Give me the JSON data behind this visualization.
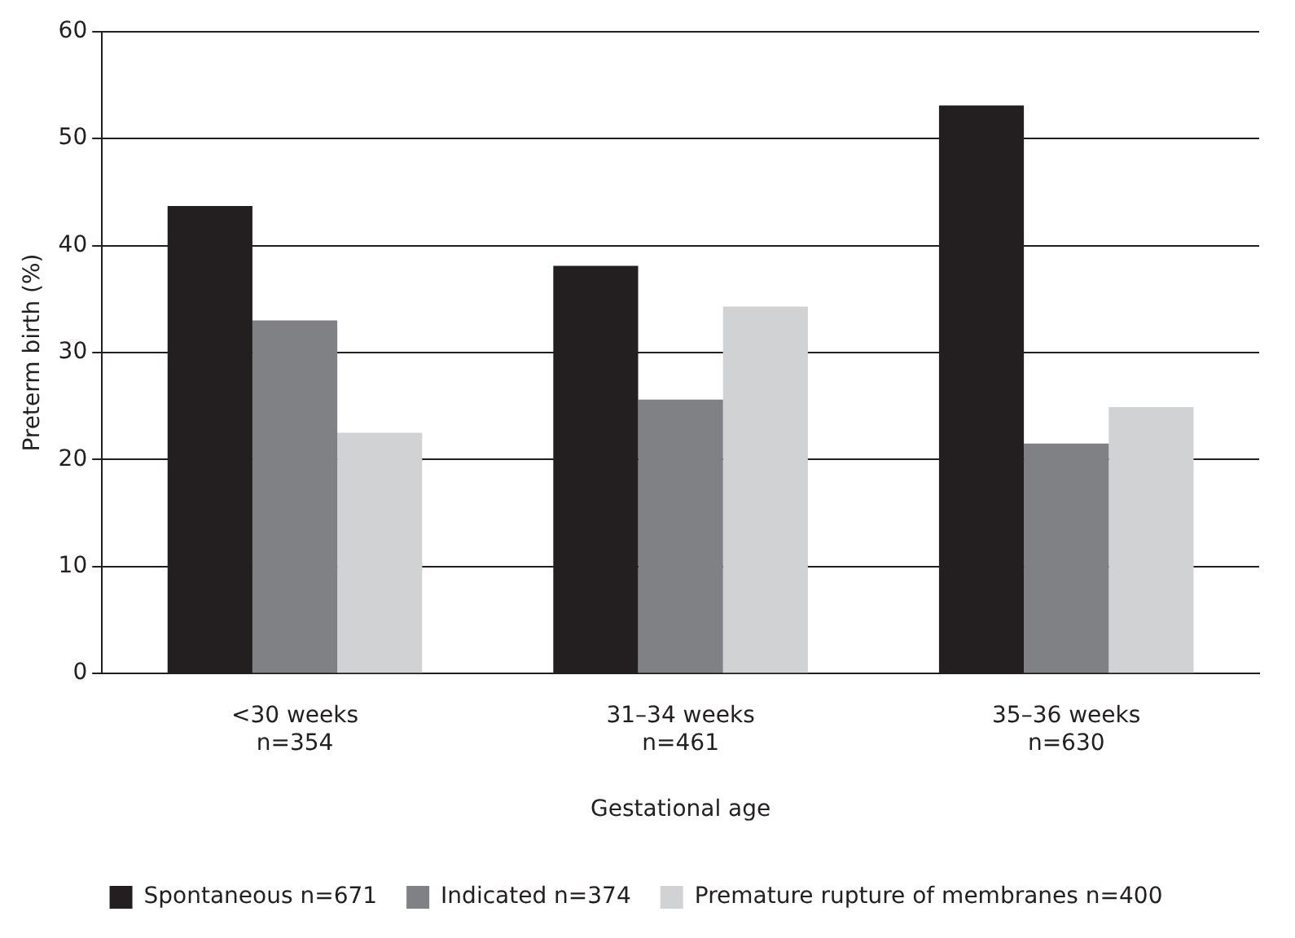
{
  "chart_data": {
    "type": "bar",
    "xlabel": "Gestational age",
    "ylabel": "Preterm birth (%)",
    "categories": [
      "<30 weeks\nn=354",
      "31–34 weeks\nn=461",
      "35–36 weeks\nn=630"
    ],
    "series": [
      {
        "name": "Spontaneous n=671",
        "color": "#231f20",
        "values": [
          43.7,
          38.1,
          53.1
        ]
      },
      {
        "name": "Indicated n=374",
        "color": "#808184",
        "values": [
          33,
          25.6,
          21.5
        ]
      },
      {
        "name": "Premature rupture of membranes n=400",
        "color": "#d1d2d4",
        "values": [
          22.5,
          34.3,
          24.9
        ]
      }
    ],
    "ylim": [
      0,
      60
    ],
    "yticks": [
      0,
      10,
      20,
      30,
      40,
      50,
      60
    ],
    "grid": "y",
    "legend": "bottom"
  }
}
